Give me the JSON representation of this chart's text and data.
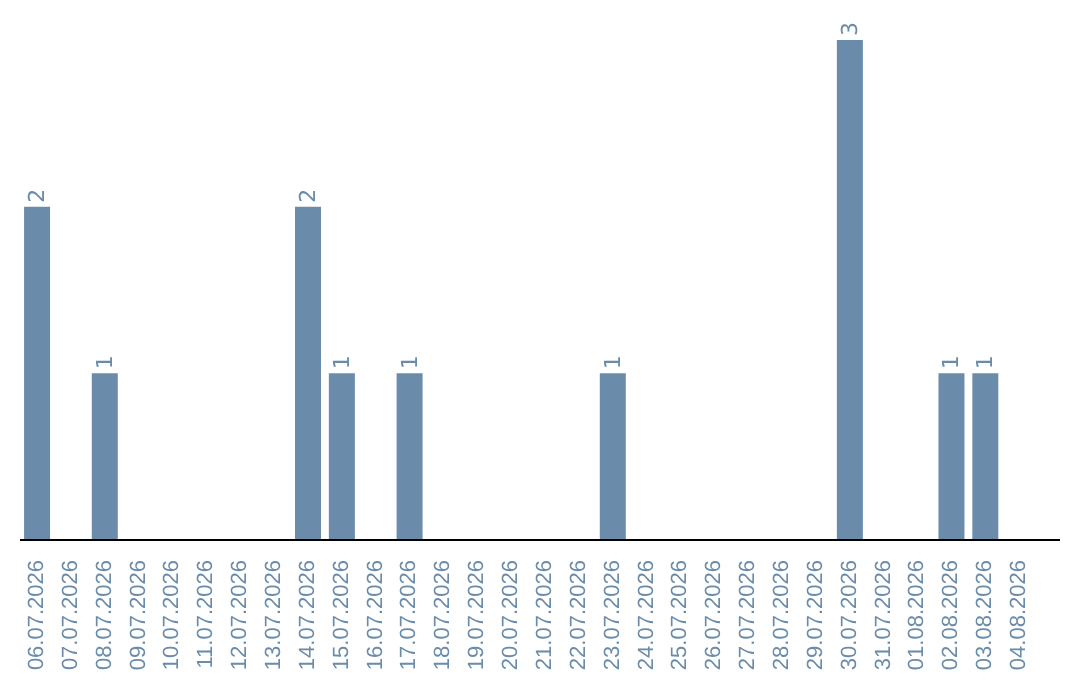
{
  "chart_data": {
    "type": "bar",
    "categories": [
      "06.07.2026",
      "07.07.2026",
      "08.07.2026",
      "09.07.2026",
      "10.07.2026",
      "11.07.2026",
      "12.07.2026",
      "13.07.2026",
      "14.07.2026",
      "15.07.2026",
      "16.07.2026",
      "17.07.2026",
      "18.07.2026",
      "19.07.2026",
      "20.07.2026",
      "21.07.2026",
      "22.07.2026",
      "23.07.2026",
      "24.07.2026",
      "25.07.2026",
      "26.07.2026",
      "27.07.2026",
      "28.07.2026",
      "29.07.2026",
      "30.07.2026",
      "31.07.2026",
      "01.08.2026",
      "02.08.2026",
      "03.08.2026",
      "04.08.2026"
    ],
    "values": [
      2,
      0,
      1,
      0,
      0,
      0,
      0,
      0,
      2,
      1,
      0,
      1,
      0,
      0,
      0,
      0,
      0,
      1,
      0,
      0,
      0,
      0,
      0,
      0,
      3,
      0,
      0,
      1,
      1,
      0
    ],
    "value_labels": [
      "2",
      null,
      "1",
      null,
      null,
      null,
      null,
      null,
      "2",
      "1",
      null,
      "1",
      null,
      null,
      null,
      null,
      null,
      "1",
      null,
      null,
      null,
      null,
      null,
      null,
      "3",
      null,
      null,
      "1",
      "1",
      null
    ],
    "color": "#6a8caa",
    "tick_labels": "x",
    "grid": false,
    "legend": false
  }
}
